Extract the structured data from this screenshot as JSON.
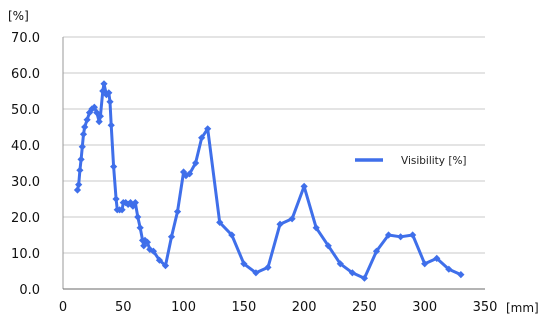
{
  "chart_data": {
    "type": "line",
    "title": "",
    "xlabel": "[mm]",
    "ylabel": "[%]",
    "xlim": [
      0,
      350
    ],
    "ylim": [
      0,
      70
    ],
    "x_ticks": [
      "0",
      "50",
      "100",
      "150",
      "200",
      "250",
      "300",
      "350"
    ],
    "y_ticks": [
      "0.0",
      "10.0",
      "20.0",
      "30.0",
      "40.0",
      "50.0",
      "60.0",
      "70.0"
    ],
    "grid": "horizontal",
    "legend_position": "right",
    "series": [
      {
        "name": "Visibility [%]",
        "color": "#3F6FEA",
        "points": [
          [
            12,
            27.5
          ],
          [
            13,
            29
          ],
          [
            14,
            33
          ],
          [
            15,
            36
          ],
          [
            16,
            39.5
          ],
          [
            17,
            43
          ],
          [
            18,
            45
          ],
          [
            20,
            47
          ],
          [
            22,
            49
          ],
          [
            24,
            50
          ],
          [
            26,
            50.5
          ],
          [
            28,
            49
          ],
          [
            30,
            46.5
          ],
          [
            31,
            48
          ],
          [
            33,
            55
          ],
          [
            34,
            57
          ],
          [
            36,
            54
          ],
          [
            38,
            54.5
          ],
          [
            39,
            52
          ],
          [
            40,
            45.5
          ],
          [
            42,
            34
          ],
          [
            44,
            25
          ],
          [
            45,
            22
          ],
          [
            47,
            22
          ],
          [
            49,
            22
          ],
          [
            50,
            24
          ],
          [
            52,
            24
          ],
          [
            54,
            23.5
          ],
          [
            56,
            24
          ],
          [
            58,
            23
          ],
          [
            60,
            24
          ],
          [
            62,
            20
          ],
          [
            64,
            17
          ],
          [
            66,
            13.5
          ],
          [
            67,
            12
          ],
          [
            68,
            13.5
          ],
          [
            70,
            13
          ],
          [
            72,
            11
          ],
          [
            75,
            10.5
          ],
          [
            80,
            8
          ],
          [
            85,
            6.5
          ],
          [
            90,
            14.5
          ],
          [
            95,
            21.5
          ],
          [
            100,
            32.5
          ],
          [
            102,
            31.5
          ],
          [
            105,
            32
          ],
          [
            110,
            35
          ],
          [
            115,
            42
          ],
          [
            120,
            44.5
          ],
          [
            130,
            18.5
          ],
          [
            140,
            15
          ],
          [
            150,
            7
          ],
          [
            160,
            4.5
          ],
          [
            170,
            6
          ],
          [
            180,
            18
          ],
          [
            190,
            19.5
          ],
          [
            200,
            28.5
          ],
          [
            210,
            17
          ],
          [
            220,
            12
          ],
          [
            230,
            7
          ],
          [
            240,
            4.5
          ],
          [
            250,
            3
          ],
          [
            260,
            10.5
          ],
          [
            270,
            15
          ],
          [
            280,
            14.5
          ],
          [
            290,
            15
          ],
          [
            300,
            7
          ],
          [
            310,
            8.5
          ],
          [
            320,
            5.5
          ],
          [
            330,
            4
          ]
        ]
      }
    ]
  }
}
